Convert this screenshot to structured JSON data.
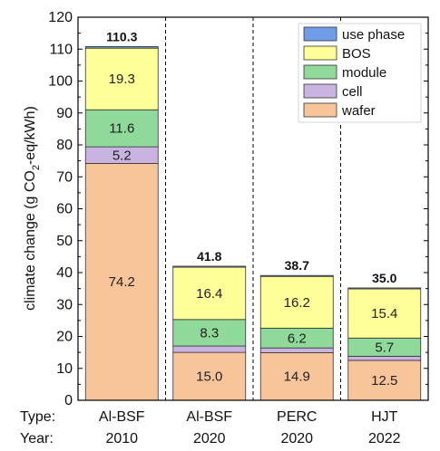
{
  "chart_data": {
    "type": "bar",
    "stacked": true,
    "row_labels": [
      "Type:",
      "Year:"
    ],
    "categories": [
      {
        "type": "Al-BSF",
        "year": "2010"
      },
      {
        "type": "Al-BSF",
        "year": "2020"
      },
      {
        "type": "PERC",
        "year": "2020"
      },
      {
        "type": "HJT",
        "year": "2022"
      }
    ],
    "series": [
      {
        "name": "wafer",
        "color": "#f8c49a",
        "values": [
          74.2,
          15.0,
          14.9,
          12.5
        ],
        "labels": [
          "74.2",
          "15.0",
          "14.9",
          "12.5"
        ]
      },
      {
        "name": "cell",
        "color": "#c9b3e0",
        "values": [
          5.2,
          2.0,
          1.5,
          1.3
        ],
        "labels": [
          "5.2",
          "",
          "",
          ""
        ]
      },
      {
        "name": "module",
        "color": "#8fd99a",
        "values": [
          11.6,
          8.3,
          6.2,
          5.7
        ],
        "labels": [
          "11.6",
          "8.3",
          "6.2",
          "5.7"
        ]
      },
      {
        "name": "BOS",
        "color": "#ffff99",
        "values": [
          19.3,
          16.4,
          16.2,
          15.4
        ],
        "labels": [
          "19.3",
          "16.4",
          "16.2",
          "15.4"
        ]
      },
      {
        "name": "use phase",
        "color": "#6f9de8",
        "values": [
          0.5,
          0.3,
          0.3,
          0.3
        ],
        "labels": [
          "",
          "",
          "",
          ""
        ]
      }
    ],
    "totals": [
      "110.3",
      "41.8",
      "38.7",
      "35.0"
    ],
    "ylabel_parts": [
      "climate change (g CO",
      "2",
      "-eq/kWh)"
    ],
    "ylim": [
      0,
      120
    ],
    "yticks": [
      0,
      10,
      20,
      30,
      40,
      50,
      60,
      70,
      80,
      90,
      100,
      110,
      120
    ],
    "legend_position": "top-right",
    "legend_order": [
      "use phase",
      "BOS",
      "module",
      "cell",
      "wafer"
    ],
    "separators": "dashed vertical lines between bars"
  }
}
